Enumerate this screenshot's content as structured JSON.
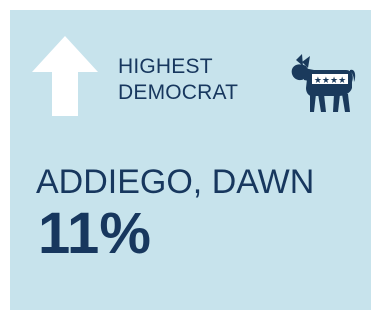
{
  "card": {
    "heading_line1": "HIGHEST",
    "heading_line2": "DEMOCRAT",
    "candidate_name": "ADDIEGO, DAWN",
    "percentage": "11%"
  },
  "icons": {
    "arrow": "up-arrow-icon",
    "party": "democrat-donkey-icon"
  },
  "colors": {
    "background": "#c7e3ec",
    "text": "#17375e",
    "arrow": "#ffffff"
  }
}
